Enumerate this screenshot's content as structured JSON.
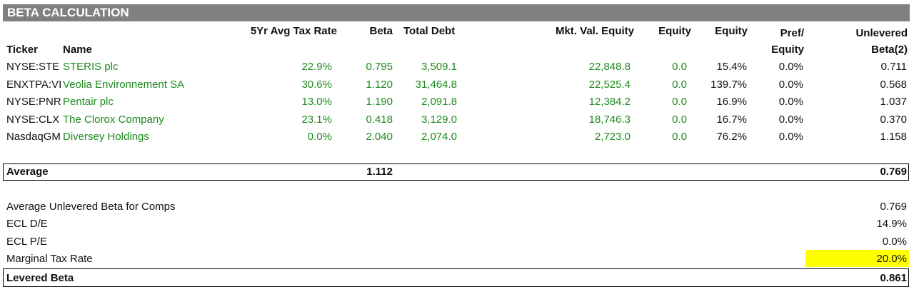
{
  "title": "BETA CALCULATION",
  "headers": {
    "ticker": "Ticker",
    "name": "Name",
    "tax_rate": "5Yr Avg Tax Rate",
    "beta": "Beta",
    "total_debt": "Total Debt",
    "mkt_val_equity": "Mkt. Val. Equity",
    "equity1": "Equity",
    "equity2": "Equity",
    "pref_top": "Pref/",
    "pref_bottom": "Equity",
    "unlev_top": "Unlevered",
    "unlev_bottom": "Beta(2)"
  },
  "rows": [
    {
      "ticker": "NYSE:STE",
      "name": "STERIS plc",
      "tax": "22.9%",
      "beta": "0.795",
      "debt": "3,509.1",
      "mve": "22,848.8",
      "eq1": "0.0",
      "eq2": "15.4%",
      "pref": "0.0%",
      "unlev": "0.711"
    },
    {
      "ticker": "ENXTPA:VIE",
      "name": "Veolia Environnement SA",
      "tax": "30.6%",
      "beta": "1.120",
      "debt": "31,464.8",
      "mve": "22,525.4",
      "eq1": "0.0",
      "eq2": "139.7%",
      "pref": "0.0%",
      "unlev": "0.568"
    },
    {
      "ticker": "NYSE:PNR",
      "name": "Pentair plc",
      "tax": "13.0%",
      "beta": "1.190",
      "debt": "2,091.8",
      "mve": "12,384.2",
      "eq1": "0.0",
      "eq2": "16.9%",
      "pref": "0.0%",
      "unlev": "1.037"
    },
    {
      "ticker": "NYSE:CLX",
      "name": "The Clorox Company",
      "tax": "23.1%",
      "beta": "0.418",
      "debt": "3,129.0",
      "mve": "18,746.3",
      "eq1": "0.0",
      "eq2": "16.7%",
      "pref": "0.0%",
      "unlev": "0.370"
    },
    {
      "ticker": "NasdaqGM:DSEY",
      "name": "Diversey Holdings",
      "tax": "0.0%",
      "beta": "2.040",
      "debt": "2,074.0",
      "mve": "2,723.0",
      "eq1": "0.0",
      "eq2": "76.2%",
      "pref": "0.0%",
      "unlev": "1.158"
    }
  ],
  "average": {
    "label": "Average",
    "beta": "1.112",
    "unlev": "0.769"
  },
  "summary": [
    {
      "label": "Average Unlevered Beta for Comps",
      "value": "0.769"
    },
    {
      "label": "ECL D/E",
      "value": "14.9%"
    },
    {
      "label": "ECL P/E",
      "value": "0.0%"
    },
    {
      "label": "Marginal Tax Rate",
      "value": "20.0%"
    }
  ],
  "levered": {
    "label": "Levered Beta",
    "value": "0.861"
  },
  "colors": {
    "banner": "#808080",
    "input_green": "#1e8a1e",
    "highlight": "#ffff00"
  }
}
